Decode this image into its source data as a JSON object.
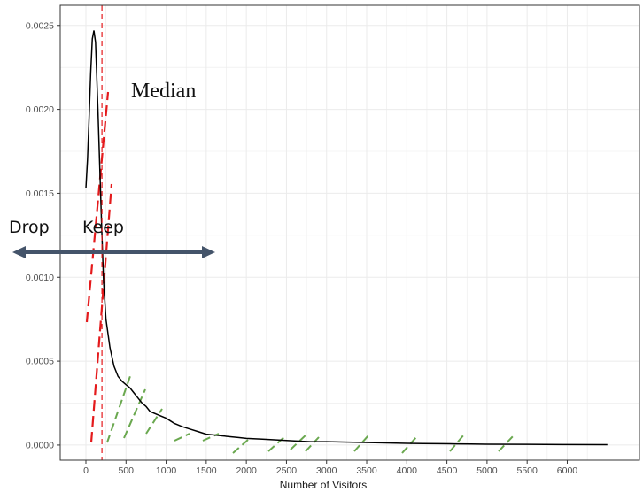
{
  "chart_data": {
    "type": "line",
    "title": "",
    "xlabel": "Number of Visitors",
    "ylabel": "",
    "xlim": [
      -320,
      6900
    ],
    "ylim": [
      -9e-05,
      0.00262
    ],
    "x_ticks": [
      0,
      500,
      1000,
      1500,
      2000,
      2500,
      3000,
      3500,
      4000,
      4500,
      5000,
      5500,
      6000
    ],
    "x_tick_labels": [
      "0",
      "500",
      "1000",
      "1500",
      "2000",
      "2500",
      "3000",
      "3500",
      "4000",
      "4500",
      "5000",
      "5500",
      "6000"
    ],
    "y_ticks": [
      0,
      0.0005,
      0.001,
      0.0015,
      0.002,
      0.0025
    ],
    "y_tick_labels": [
      "0.0000",
      "0.0005",
      "0.0010",
      "0.0015",
      "0.0020",
      "0.0025"
    ],
    "grid": true,
    "series": [
      {
        "x": [
          0,
          20,
          40,
          60,
          80,
          100,
          120,
          150,
          180,
          200,
          220,
          250,
          300,
          350,
          400,
          450,
          500,
          550,
          600,
          650,
          700,
          750,
          800,
          900,
          950,
          1000,
          1100,
          1200,
          1300,
          1400,
          1500,
          1600,
          1700,
          1800,
          1900,
          2000,
          2200,
          2400,
          2600,
          2800,
          3000,
          3200,
          3400,
          3600,
          3800,
          4000,
          4200,
          4400,
          4600,
          4800,
          5000,
          5500,
          6000,
          6500
        ],
        "y": [
          0.00153,
          0.0017,
          0.00195,
          0.00222,
          0.00242,
          0.00247,
          0.0024,
          0.002,
          0.00155,
          0.00125,
          0.00098,
          0.00075,
          0.00058,
          0.00047,
          0.00041,
          0.00038,
          0.00036,
          0.00034,
          0.00031,
          0.00028,
          0.00025,
          0.00023,
          0.0002,
          0.00018,
          0.00017,
          0.00016,
          0.00013,
          0.00011,
          9.5e-05,
          8e-05,
          6.5e-05,
          6e-05,
          5.5e-05,
          5e-05,
          4.5e-05,
          4e-05,
          3.5e-05,
          3e-05,
          2.5e-05,
          2e-05,
          2e-05,
          1.8e-05,
          1.6e-05,
          1.4e-05,
          1.2e-05,
          1e-05,
          9e-06,
          8e-06,
          7e-06,
          6e-06,
          5e-06,
          4e-06,
          3e-06,
          2e-06
        ]
      }
    ],
    "median_x": 200,
    "annotations": {
      "median": "Median",
      "drop": "Drop",
      "keep": "Keep"
    },
    "colors": {
      "curve": "#000000",
      "median_line": "#e41a1c",
      "red_dash": "#e41a1c",
      "green_dash": "#6aa84f",
      "arrow": "#44546a",
      "grid": "#ebebeb",
      "panel_border": "#333333"
    }
  }
}
